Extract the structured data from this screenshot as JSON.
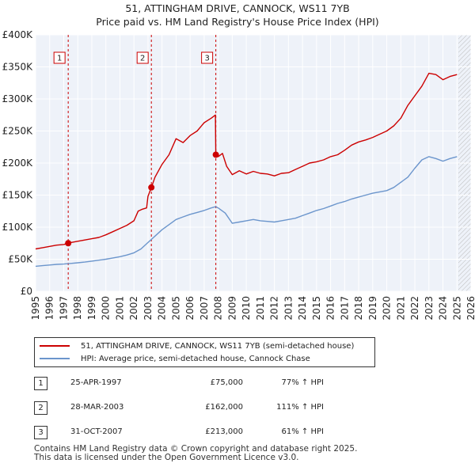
{
  "chart_data": {
    "type": "line",
    "title": "51, ATTINGHAM DRIVE, CANNOCK, WS11 7YB",
    "subtitle": "Price paid vs. HM Land Registry's House Price Index (HPI)",
    "xlabel": "",
    "ylabel": "",
    "xlim": [
      1995,
      2026
    ],
    "ylim": [
      0,
      400000
    ],
    "x_ticks": [
      "1995",
      "1996",
      "1997",
      "1998",
      "1999",
      "2000",
      "2001",
      "2002",
      "2003",
      "2004",
      "2005",
      "2006",
      "2007",
      "2008",
      "2009",
      "2010",
      "2011",
      "2012",
      "2013",
      "2014",
      "2015",
      "2016",
      "2017",
      "2018",
      "2019",
      "2020",
      "2021",
      "2022",
      "2023",
      "2024",
      "2025",
      "2026"
    ],
    "y_ticks": [
      {
        "value": 0,
        "label": "£0"
      },
      {
        "value": 50000,
        "label": "£50K"
      },
      {
        "value": 100000,
        "label": "£100K"
      },
      {
        "value": 150000,
        "label": "£150K"
      },
      {
        "value": 200000,
        "label": "£200K"
      },
      {
        "value": 250000,
        "label": "£250K"
      },
      {
        "value": 300000,
        "label": "£300K"
      },
      {
        "value": 350000,
        "label": "£350K"
      },
      {
        "value": 400000,
        "label": "£400K"
      }
    ],
    "grid": true,
    "forecast_start": 2025.1,
    "series": [
      {
        "name": "51, ATTINGHAM DRIVE, CANNOCK, WS11 7YB (semi-detached house)",
        "color": "#cc0000",
        "x": [
          1995.0,
          1995.5,
          1996.0,
          1996.5,
          1997.0,
          1997.32,
          1997.5,
          1998.0,
          1998.5,
          1999.0,
          1999.5,
          2000.0,
          2000.5,
          2001.0,
          2001.5,
          2002.0,
          2002.3,
          2002.6,
          2002.9,
          2003.0,
          2003.24,
          2003.5,
          2004.0,
          2004.5,
          2005.0,
          2005.5,
          2006.0,
          2006.5,
          2007.0,
          2007.5,
          2007.8,
          2007.83,
          2008.0,
          2008.3,
          2008.6,
          2009.0,
          2009.5,
          2010.0,
          2010.5,
          2011.0,
          2011.5,
          2012.0,
          2012.5,
          2013.0,
          2013.5,
          2014.0,
          2014.5,
          2015.0,
          2015.5,
          2016.0,
          2016.5,
          2017.0,
          2017.5,
          2018.0,
          2018.5,
          2019.0,
          2019.5,
          2020.0,
          2020.5,
          2021.0,
          2021.5,
          2022.0,
          2022.5,
          2023.0,
          2023.5,
          2024.0,
          2024.5,
          2025.0
        ],
        "y": [
          66000,
          68000,
          70000,
          72000,
          73000,
          75000,
          76000,
          78000,
          80000,
          82000,
          84000,
          88000,
          93000,
          98000,
          103000,
          110000,
          125000,
          128000,
          130000,
          148000,
          162000,
          178000,
          198000,
          213000,
          238000,
          232000,
          243000,
          250000,
          263000,
          270000,
          275000,
          213000,
          210000,
          215000,
          195000,
          182000,
          188000,
          183000,
          187000,
          184000,
          183000,
          180000,
          184000,
          185000,
          190000,
          195000,
          200000,
          202000,
          205000,
          210000,
          213000,
          220000,
          228000,
          233000,
          236000,
          240000,
          245000,
          250000,
          258000,
          270000,
          290000,
          305000,
          320000,
          340000,
          338000,
          330000,
          335000,
          338000
        ]
      },
      {
        "name": "HPI: Average price, semi-detached house, Cannock Chase",
        "color": "#6b95cc",
        "x": [
          1995.0,
          1995.5,
          1996.0,
          1996.5,
          1997.0,
          1997.5,
          1998.0,
          1998.5,
          1999.0,
          1999.5,
          2000.0,
          2000.5,
          2001.0,
          2001.5,
          2002.0,
          2002.5,
          2003.0,
          2003.5,
          2004.0,
          2004.5,
          2005.0,
          2005.5,
          2006.0,
          2006.5,
          2007.0,
          2007.5,
          2007.83,
          2008.0,
          2008.5,
          2009.0,
          2009.5,
          2010.0,
          2010.5,
          2011.0,
          2011.5,
          2012.0,
          2012.5,
          2013.0,
          2013.5,
          2014.0,
          2014.5,
          2015.0,
          2015.5,
          2016.0,
          2016.5,
          2017.0,
          2017.5,
          2018.0,
          2018.5,
          2019.0,
          2019.5,
          2020.0,
          2020.5,
          2021.0,
          2021.5,
          2022.0,
          2022.5,
          2023.0,
          2023.5,
          2024.0,
          2024.5,
          2025.0
        ],
        "y": [
          39000,
          40000,
          41000,
          42000,
          42500,
          43500,
          44500,
          45500,
          47000,
          48500,
          50000,
          52000,
          54000,
          56500,
          60000,
          66000,
          76000,
          86000,
          96000,
          104000,
          112000,
          116000,
          120000,
          123000,
          126000,
          130000,
          132000,
          130000,
          122000,
          106000,
          108000,
          110000,
          112000,
          110000,
          109000,
          108000,
          110000,
          112000,
          114000,
          118000,
          122000,
          126000,
          129000,
          133000,
          137000,
          140000,
          144000,
          147000,
          150000,
          153000,
          155000,
          157000,
          162000,
          170000,
          178000,
          192000,
          205000,
          210000,
          207000,
          203000,
          207000,
          210000
        ]
      }
    ],
    "markers": [
      {
        "label": "1",
        "x": 1997.32,
        "y": 75000
      },
      {
        "label": "2",
        "x": 2003.24,
        "y": 162000
      },
      {
        "label": "3",
        "x": 2007.83,
        "y": 213000
      }
    ]
  },
  "legend": [
    {
      "label": "51, ATTINGHAM DRIVE, CANNOCK, WS11 7YB (semi-detached house)",
      "color": "#cc0000"
    },
    {
      "label": "HPI: Average price, semi-detached house, Cannock Chase",
      "color": "#6b95cc"
    }
  ],
  "transactions": [
    {
      "num": "1",
      "date": "25-APR-1997",
      "price": "£75,000",
      "hpi": "77% ↑ HPI"
    },
    {
      "num": "2",
      "date": "28-MAR-2003",
      "price": "£162,000",
      "hpi": "111% ↑ HPI"
    },
    {
      "num": "3",
      "date": "31-OCT-2007",
      "price": "£213,000",
      "hpi": "61% ↑ HPI"
    }
  ],
  "footer": {
    "line1": "Contains HM Land Registry data © Crown copyright and database right 2025.",
    "line2": "This data is licensed under the Open Government Licence v3.0."
  }
}
